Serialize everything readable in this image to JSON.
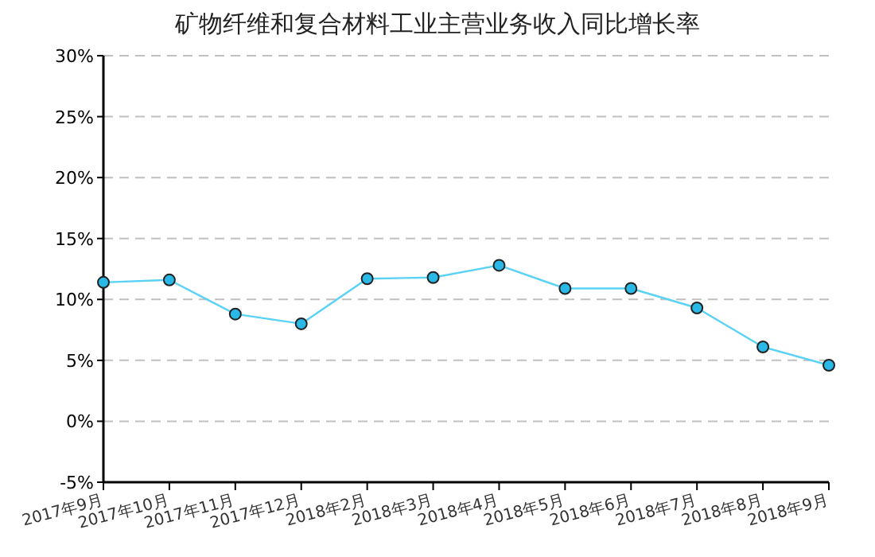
{
  "chart_data": {
    "type": "line",
    "title": "矿物纤维和复合材料工业主营业务收入同比增长率",
    "categories": [
      "2017年9月",
      "2017年10月",
      "2017年11月",
      "2017年12月",
      "2018年2月",
      "2018年3月",
      "2018年4月",
      "2018年5月",
      "2018年6月",
      "2018年7月",
      "2018年8月",
      "2018年9月"
    ],
    "series": [
      {
        "color": "#5ad2f5",
        "values": [
          11.4,
          11.6,
          8.8,
          8.0,
          11.7,
          11.8,
          12.8,
          10.9,
          10.9,
          9.3,
          6.1,
          4.6
        ]
      }
    ],
    "ylim": [
      -5,
      30
    ],
    "yticks": [
      {
        "value": -5,
        "label": "-5%"
      },
      {
        "value": 0,
        "label": "0%"
      },
      {
        "value": 5,
        "label": "5%"
      },
      {
        "value": 10,
        "label": "10%"
      },
      {
        "value": 15,
        "label": "15%"
      },
      {
        "value": 20,
        "label": "20%"
      },
      {
        "value": 25,
        "label": "25%"
      },
      {
        "value": 30,
        "label": "30%"
      }
    ],
    "grid": "y",
    "marker": "circle",
    "line_style": "solid"
  }
}
